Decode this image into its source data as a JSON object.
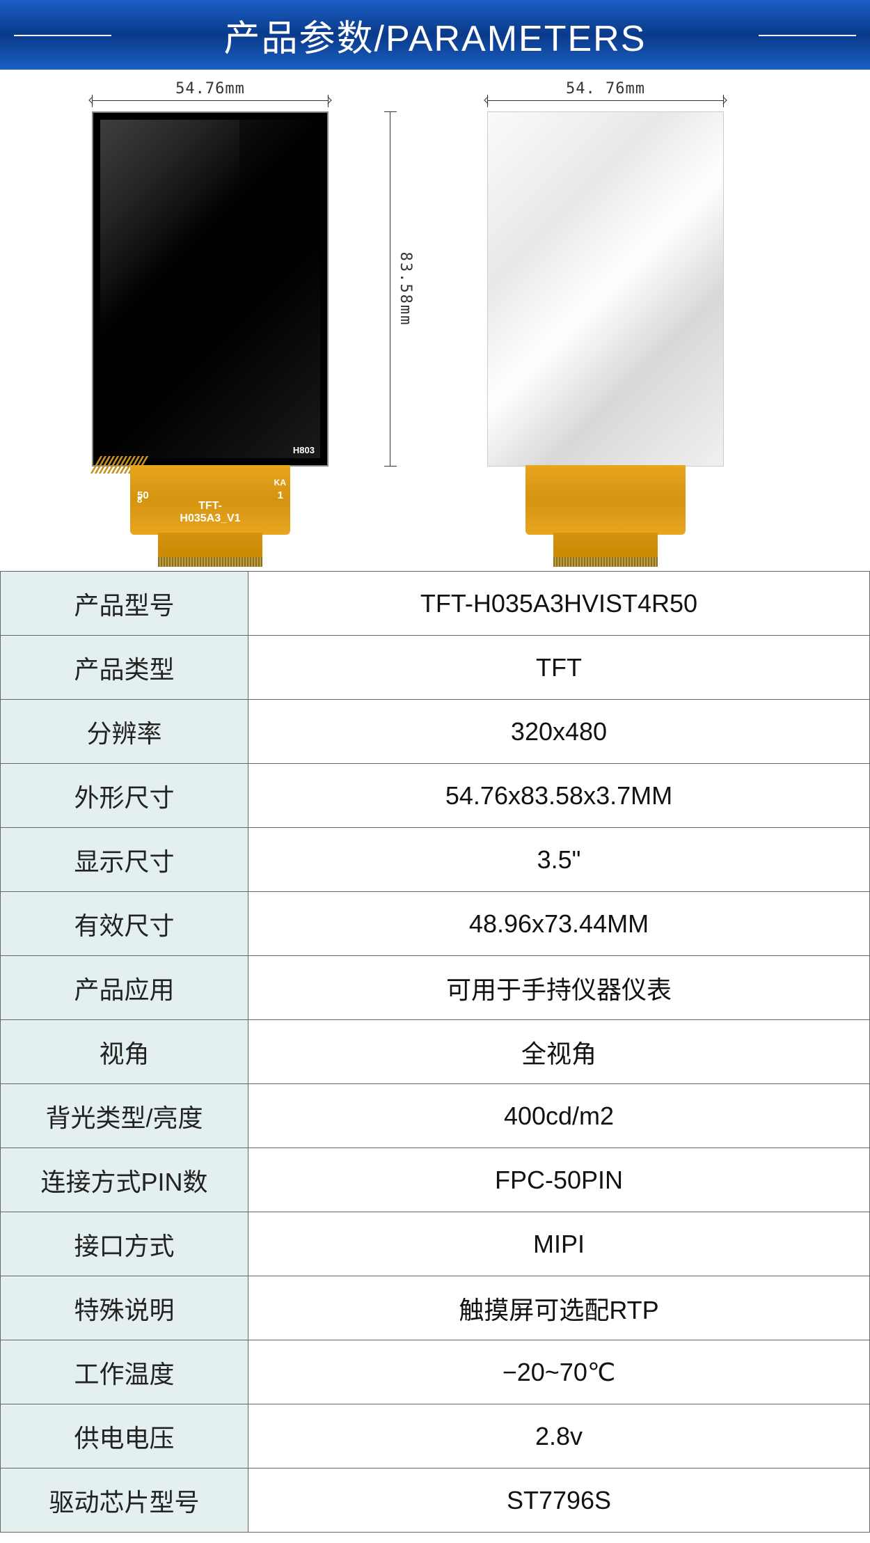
{
  "header": {
    "title": "产品参数/PARAMETERS"
  },
  "diagram": {
    "width_label": "54.76mm",
    "width_label2": "54. 76mm",
    "height_label": "83.58mm",
    "front_corner_text": "H803",
    "fpc_label": "TFT-H035A3_V1",
    "fpc_pin_left": "50",
    "fpc_pin_right": "1",
    "fpc_small_left": "8",
    "fpc_small_right": "KA",
    "colors": {
      "header_grad_top": "#1a5fc4",
      "header_grad_mid": "#0a3a8a",
      "fpc_base": "#e8a520",
      "table_key_bg": "#e4eff0",
      "border": "#666666"
    }
  },
  "table": {
    "rows": [
      {
        "k": "产品型号",
        "v": "TFT-H035A3HVIST4R50"
      },
      {
        "k": "产品类型",
        "v": "TFT"
      },
      {
        "k": "分辨率",
        "v": "320x480"
      },
      {
        "k": "外形尺寸",
        "v": "54.76x83.58x3.7MM"
      },
      {
        "k": "显示尺寸",
        "v": "3.5\""
      },
      {
        "k": "有效尺寸",
        "v": "48.96x73.44MM"
      },
      {
        "k": "产品应用",
        "v": "可用于手持仪器仪表"
      },
      {
        "k": "视角",
        "v": "全视角"
      },
      {
        "k": "背光类型/亮度",
        "v": "400cd/m2"
      },
      {
        "k": "连接方式PIN数",
        "v": "FPC-50PIN"
      },
      {
        "k": "接口方式",
        "v": "MIPI"
      },
      {
        "k": "特殊说明",
        "v": "触摸屏可选配RTP"
      },
      {
        "k": "工作温度",
        "v": "−20~70℃"
      },
      {
        "k": "供电电压",
        "v": "2.8v"
      },
      {
        "k": "驱动芯片型号",
        "v": "ST7796S"
      }
    ]
  }
}
